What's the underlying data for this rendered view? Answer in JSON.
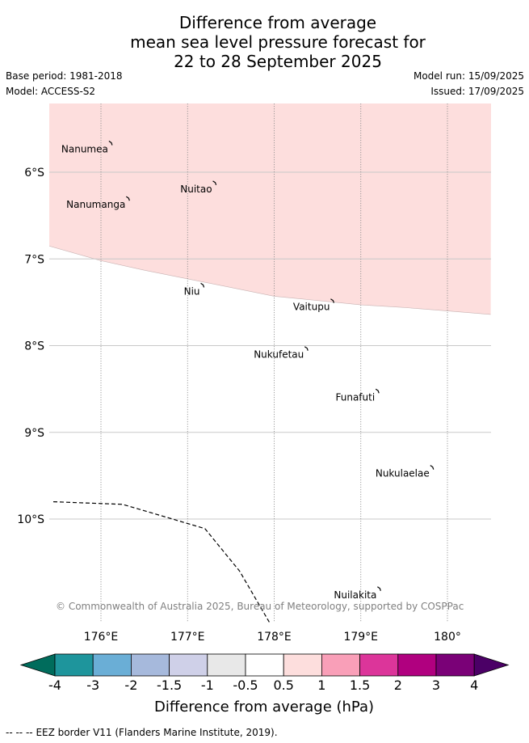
{
  "title": {
    "line1": "Difference from average",
    "line2": "mean sea level pressure forecast for",
    "line3": "22 to 28 September 2025"
  },
  "meta": {
    "base_period": "Base period: 1981-2018",
    "model": "Model: ACCESS-S2",
    "model_run": "Model run: 15/09/2025",
    "issued": "Issued: 17/09/2025"
  },
  "map": {
    "lon_ticks": [
      {
        "value": 176,
        "label": "176°E"
      },
      {
        "value": 177,
        "label": "177°E"
      },
      {
        "value": 178,
        "label": "178°E"
      },
      {
        "value": 179,
        "label": "179°E"
      },
      {
        "value": 180,
        "label": "180°"
      }
    ],
    "lat_ticks": [
      {
        "value": -6,
        "label": "6°S"
      },
      {
        "value": -7,
        "label": "7°S"
      },
      {
        "value": -8,
        "label": "8°S"
      },
      {
        "value": -9,
        "label": "9°S"
      },
      {
        "value": -10,
        "label": "10°S"
      }
    ],
    "anomaly_region": {
      "range_hpa": "0.5 to 1",
      "color": "#fddedd",
      "southern_boundary": [
        {
          "lon": 175.4,
          "lat": -6.85
        },
        {
          "lon": 176.0,
          "lat": -7.02
        },
        {
          "lon": 176.5,
          "lat": -7.13
        },
        {
          "lon": 177.0,
          "lat": -7.23
        },
        {
          "lon": 177.5,
          "lat": -7.33
        },
        {
          "lon": 178.0,
          "lat": -7.43
        },
        {
          "lon": 178.5,
          "lat": -7.48
        },
        {
          "lon": 179.0,
          "lat": -7.53
        },
        {
          "lon": 179.5,
          "lat": -7.56
        },
        {
          "lon": 180.0,
          "lat": -7.6
        },
        {
          "lon": 180.5,
          "lat": -7.64
        }
      ]
    },
    "eez_border": [
      {
        "lon": 175.45,
        "lat": -9.8
      },
      {
        "lon": 176.25,
        "lat": -9.83
      },
      {
        "lon": 177.2,
        "lat": -10.11
      },
      {
        "lon": 177.6,
        "lat": -10.6
      },
      {
        "lon": 177.95,
        "lat": -11.2
      }
    ],
    "islands": [
      {
        "name": "Nanumea",
        "lon": 176.12,
        "lat": -5.66
      },
      {
        "name": "Nuitao",
        "lon": 177.32,
        "lat": -6.12
      },
      {
        "name": "Nanumanga",
        "lon": 176.32,
        "lat": -6.3
      },
      {
        "name": "Niu",
        "lon": 177.18,
        "lat": -7.3
      },
      {
        "name": "Vaitupu",
        "lon": 178.68,
        "lat": -7.48
      },
      {
        "name": "Nukufetau",
        "lon": 178.38,
        "lat": -8.03
      },
      {
        "name": "Funafuti",
        "lon": 179.2,
        "lat": -8.52
      },
      {
        "name": "Nukulaelae",
        "lon": 179.83,
        "lat": -9.4
      },
      {
        "name": "Nuilakita",
        "lon": 179.22,
        "lat": -10.8
      }
    ],
    "copyright": "© Commonwealth of Australia 2025, Bureau of Meteorology, supported by COSPPac"
  },
  "colorbar": {
    "label": "Difference from average (hPa)",
    "ticks": [
      "-4",
      "-3",
      "-2",
      "-1.5",
      "-1",
      "-0.5",
      "0.5",
      "1",
      "1.5",
      "2",
      "3",
      "4"
    ],
    "low_extend_color": "#006c5c",
    "high_extend_color": "#4b0066",
    "colors": [
      "#1e959c",
      "#6aaed6",
      "#a6b9dc",
      "#cfd0e8",
      "#e8e8e8",
      "#ffffff",
      "#fddedd",
      "#f99fb8",
      "#dc359a",
      "#b0007f",
      "#7a0177"
    ]
  },
  "footer": {
    "legend_symbol": "-- -- --",
    "legend_text": "EEZ border V11 (Flanders Marine Institute, 2019)."
  }
}
